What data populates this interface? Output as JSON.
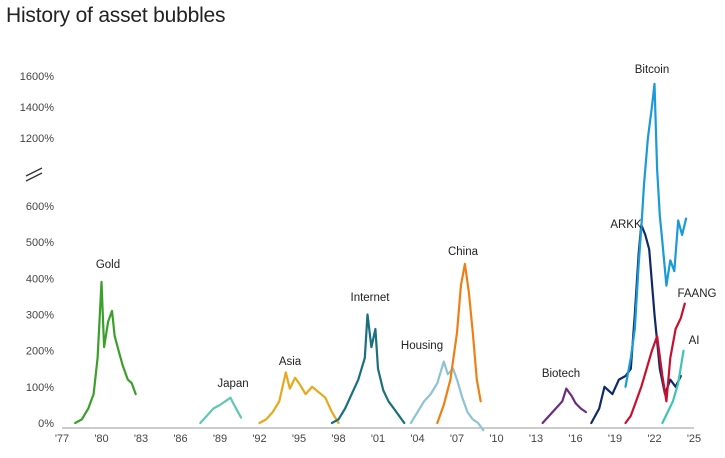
{
  "chart_data": {
    "type": "line",
    "title": "History of asset bubbles",
    "xlabel": "",
    "ylabel": "",
    "y_ticks": [
      "0%",
      "100%",
      "200%",
      "300%",
      "400%",
      "500%",
      "600%",
      "1200%",
      "1400%",
      "1600%"
    ],
    "y_break": true,
    "x_ticks": [
      "'77",
      "'80",
      "'83",
      "'86",
      "'89",
      "'92",
      "'95",
      "'98",
      "'01",
      "'04",
      "'07",
      "'10",
      "'13",
      "'16",
      "'19",
      "'22",
      "'25"
    ],
    "grid": false,
    "series": [
      {
        "name": "Gold",
        "color": "#3aa02a",
        "x": [
          1978.0,
          1978.5,
          1979.0,
          1979.4,
          1979.7,
          1980.0,
          1980.2,
          1980.5,
          1980.8,
          1981.0,
          1981.3,
          1981.6,
          1982.0,
          1982.3,
          1982.6
        ],
        "y": [
          0,
          10,
          40,
          80,
          180,
          390,
          210,
          280,
          310,
          240,
          200,
          160,
          120,
          110,
          80
        ]
      },
      {
        "name": "Japan",
        "color": "#5ec8b4",
        "x": [
          1987.5,
          1988.0,
          1988.5,
          1989.0,
          1989.4,
          1989.8,
          1990.0,
          1990.3,
          1990.6
        ],
        "y": [
          0,
          20,
          40,
          50,
          60,
          70,
          55,
          35,
          15
        ]
      },
      {
        "name": "Asia",
        "color": "#e8a81c",
        "x": [
          1992.0,
          1992.5,
          1993.0,
          1993.5,
          1994.0,
          1994.3,
          1994.7,
          1995.0,
          1995.5,
          1996.0,
          1996.5,
          1997.0,
          1997.5,
          1998.0
        ],
        "y": [
          0,
          10,
          30,
          60,
          140,
          95,
          125,
          110,
          80,
          100,
          85,
          70,
          30,
          0
        ]
      },
      {
        "name": "Internet",
        "color": "#1b6f7e",
        "x": [
          1997.5,
          1998.0,
          1998.5,
          1999.0,
          1999.5,
          2000.0,
          2000.2,
          2000.5,
          2000.8,
          2001.0,
          2001.4,
          2001.8,
          2002.2,
          2002.6,
          2003.0
        ],
        "y": [
          0,
          10,
          40,
          80,
          120,
          180,
          300,
          210,
          260,
          150,
          90,
          60,
          40,
          20,
          0
        ]
      },
      {
        "name": "Housing",
        "color": "#8ec3d3",
        "x": [
          2003.5,
          2004.0,
          2004.5,
          2005.0,
          2005.5,
          2006.0,
          2006.3,
          2006.7,
          2007.0,
          2007.4,
          2007.8,
          2008.2,
          2008.6,
          2009.0
        ],
        "y": [
          0,
          30,
          60,
          80,
          110,
          170,
          135,
          150,
          120,
          70,
          30,
          10,
          0,
          -60
        ]
      },
      {
        "name": "China",
        "color": "#f07f13",
        "x": [
          2005.5,
          2006.0,
          2006.5,
          2007.0,
          2007.3,
          2007.6,
          2007.9,
          2008.2,
          2008.5,
          2008.8
        ],
        "y": [
          0,
          50,
          120,
          250,
          380,
          440,
          360,
          250,
          120,
          60
        ]
      },
      {
        "name": "Biotech",
        "color": "#6b2c7e",
        "x": [
          2013.5,
          2014.0,
          2014.5,
          2015.0,
          2015.3,
          2015.7,
          2016.0,
          2016.4,
          2016.8
        ],
        "y": [
          0,
          20,
          40,
          60,
          95,
          75,
          55,
          40,
          30
        ]
      },
      {
        "name": "ARKK",
        "color": "#0f2a6b",
        "x": [
          2017.2,
          2017.8,
          2018.2,
          2018.8,
          2019.3,
          2019.8,
          2020.2,
          2020.5,
          2020.8,
          2021.0,
          2021.3,
          2021.6,
          2022.0,
          2022.4,
          2022.8,
          2023.2,
          2023.6,
          2024.0
        ],
        "y": [
          0,
          40,
          100,
          80,
          120,
          130,
          150,
          300,
          470,
          640,
          520,
          480,
          300,
          150,
          80,
          120,
          100,
          130
        ]
      },
      {
        "name": "FAANG",
        "color": "#c8102e",
        "x": [
          2019.8,
          2020.2,
          2020.6,
          2021.0,
          2021.4,
          2021.8,
          2022.2,
          2022.6,
          2022.9,
          2023.2,
          2023.6,
          2024.0,
          2024.3
        ],
        "y": [
          0,
          20,
          60,
          100,
          150,
          200,
          240,
          130,
          60,
          180,
          260,
          290,
          330
        ]
      },
      {
        "name": "AI",
        "color": "#3cc6b0",
        "x": [
          2022.6,
          2023.0,
          2023.4,
          2023.8,
          2024.2
        ],
        "y": [
          0,
          30,
          60,
          110,
          200
        ]
      },
      {
        "name": "Bitcoin",
        "color": "#1a9ad6",
        "x": [
          2019.8,
          2020.2,
          2020.5,
          2020.8,
          2021.0,
          2021.2,
          2021.5,
          2021.8,
          2022.0,
          2022.2,
          2022.4,
          2022.6,
          2022.9,
          2023.2,
          2023.5,
          2023.8,
          2024.1,
          2024.4
        ],
        "y": [
          100,
          180,
          260,
          440,
          620,
          900,
          1200,
          1400,
          1550,
          1000,
          700,
          500,
          380,
          450,
          420,
          560,
          520,
          680
        ]
      }
    ]
  }
}
